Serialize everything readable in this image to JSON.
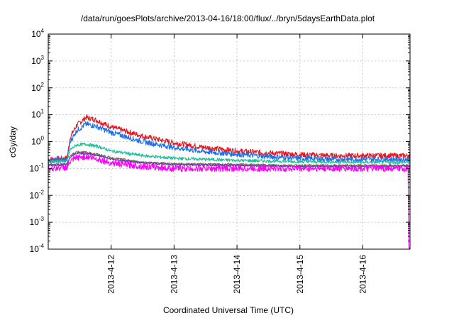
{
  "chart_data": {
    "type": "line",
    "title": "/data/run/goesPlots/archive/2013-04-16/18:00/flux/../bryn/5daysEarthData.plot",
    "xlabel": "Coordinated Universal Time (UTC)",
    "ylabel": "cGy/day",
    "yscale": "log",
    "ylim": [
      0.0001,
      10000
    ],
    "xlim": [
      0.0,
      5.75
    ],
    "grid": true,
    "x_ticks": [
      {
        "value": 1.0,
        "label": "2013-4-12"
      },
      {
        "value": 2.0,
        "label": "2013-4-13"
      },
      {
        "value": 3.0,
        "label": "2013-4-14"
      },
      {
        "value": 4.0,
        "label": "2013-4-15"
      },
      {
        "value": 5.0,
        "label": "2013-4-16"
      }
    ],
    "y_ticks": [
      {
        "value": 0.0001,
        "base": "10",
        "exp": "-4"
      },
      {
        "value": 0.001,
        "base": "10",
        "exp": "-3"
      },
      {
        "value": 0.01,
        "base": "10",
        "exp": "-2"
      },
      {
        "value": 0.1,
        "base": "10",
        "exp": "-1"
      },
      {
        "value": 1,
        "base": "10",
        "exp": "0"
      },
      {
        "value": 10,
        "base": "10",
        "exp": "1"
      },
      {
        "value": 100,
        "base": "10",
        "exp": "2"
      },
      {
        "value": 1000,
        "base": "10",
        "exp": "3"
      },
      {
        "value": 10000,
        "base": "10",
        "exp": "4"
      }
    ],
    "series": [
      {
        "color": "#e8171f",
        "noise": 0.1,
        "points": [
          [
            0.0,
            0.22
          ],
          [
            0.3,
            0.24
          ],
          [
            0.35,
            1.5
          ],
          [
            0.45,
            4.0
          ],
          [
            0.6,
            8.0
          ],
          [
            0.75,
            6.5
          ],
          [
            1.0,
            3.5
          ],
          [
            1.5,
            1.6
          ],
          [
            2.0,
            0.9
          ],
          [
            2.5,
            0.6
          ],
          [
            3.0,
            0.45
          ],
          [
            3.5,
            0.38
          ],
          [
            4.0,
            0.33
          ],
          [
            4.5,
            0.3
          ],
          [
            5.0,
            0.3
          ],
          [
            5.75,
            0.3
          ]
        ]
      },
      {
        "color": "#1a6fe8",
        "noise": 0.1,
        "points": [
          [
            0.0,
            0.2
          ],
          [
            0.3,
            0.21
          ],
          [
            0.35,
            1.0
          ],
          [
            0.45,
            2.5
          ],
          [
            0.6,
            4.5
          ],
          [
            0.75,
            3.8
          ],
          [
            1.0,
            2.2
          ],
          [
            1.5,
            1.0
          ],
          [
            2.0,
            0.6
          ],
          [
            2.5,
            0.42
          ],
          [
            3.0,
            0.34
          ],
          [
            3.5,
            0.28
          ],
          [
            4.0,
            0.24
          ],
          [
            4.5,
            0.22
          ],
          [
            5.0,
            0.22
          ],
          [
            5.75,
            0.22
          ]
        ]
      },
      {
        "color": "#1fbf9a",
        "noise": 0.06,
        "points": [
          [
            0.0,
            0.18
          ],
          [
            0.3,
            0.19
          ],
          [
            0.35,
            0.5
          ],
          [
            0.45,
            0.75
          ],
          [
            0.6,
            0.8
          ],
          [
            0.8,
            0.65
          ],
          [
            1.0,
            0.45
          ],
          [
            1.5,
            0.3
          ],
          [
            2.0,
            0.24
          ],
          [
            3.0,
            0.2
          ],
          [
            4.0,
            0.18
          ],
          [
            5.0,
            0.17
          ],
          [
            5.75,
            0.17
          ]
        ]
      },
      {
        "color": "#7a6a3a",
        "noise": 0.04,
        "points": [
          [
            0.0,
            0.14
          ],
          [
            0.3,
            0.15
          ],
          [
            0.35,
            0.3
          ],
          [
            0.45,
            0.42
          ],
          [
            0.6,
            0.4
          ],
          [
            0.8,
            0.33
          ],
          [
            1.0,
            0.25
          ],
          [
            1.5,
            0.17
          ],
          [
            2.0,
            0.15
          ],
          [
            3.0,
            0.14
          ],
          [
            4.0,
            0.13
          ],
          [
            5.0,
            0.13
          ],
          [
            5.75,
            0.13
          ]
        ]
      },
      {
        "color": "#6a3ab8",
        "noise": 0.04,
        "points": [
          [
            0.0,
            0.13
          ],
          [
            0.3,
            0.14
          ],
          [
            0.35,
            0.28
          ],
          [
            0.45,
            0.38
          ],
          [
            0.6,
            0.36
          ],
          [
            0.8,
            0.3
          ],
          [
            1.0,
            0.22
          ],
          [
            1.5,
            0.16
          ],
          [
            2.0,
            0.14
          ],
          [
            3.0,
            0.13
          ],
          [
            4.0,
            0.12
          ],
          [
            5.0,
            0.12
          ],
          [
            5.75,
            0.12
          ]
        ]
      },
      {
        "color": "#ff00ff",
        "noise": 0.12,
        "points": [
          [
            0.0,
            0.1
          ],
          [
            0.3,
            0.11
          ],
          [
            0.35,
            0.18
          ],
          [
            0.45,
            0.25
          ],
          [
            0.6,
            0.28
          ],
          [
            0.8,
            0.22
          ],
          [
            1.0,
            0.16
          ],
          [
            1.5,
            0.12
          ],
          [
            2.0,
            0.1
          ],
          [
            3.0,
            0.1
          ],
          [
            4.0,
            0.1
          ],
          [
            5.0,
            0.1
          ],
          [
            5.72,
            0.1
          ],
          [
            5.73,
            0.0001
          ]
        ]
      }
    ]
  }
}
